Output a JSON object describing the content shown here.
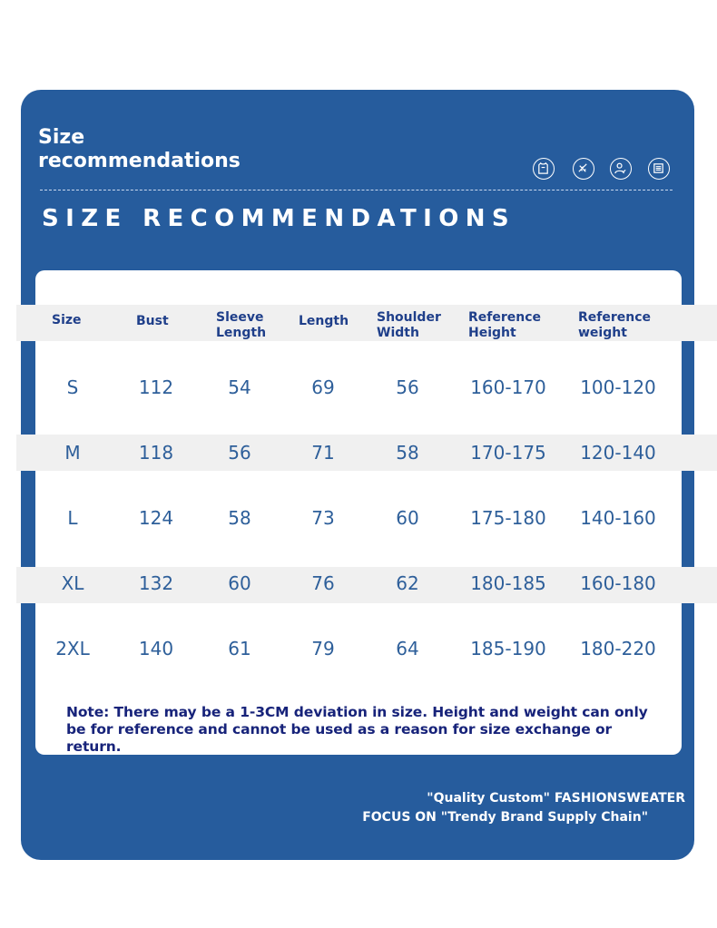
{
  "header": {
    "title_line1": "Size",
    "title_line2": "recommendations",
    "big_title": "SIZE RECOMMENDATIONS",
    "icons": [
      "shirt-icon",
      "tape-measure-icon",
      "person-check-icon",
      "size-list-icon"
    ]
  },
  "table": {
    "headers": [
      {
        "l1": "Size",
        "l2": ""
      },
      {
        "l1": "Bust",
        "l2": ""
      },
      {
        "l1": "Sleeve",
        "l2": "Length"
      },
      {
        "l1": "Length",
        "l2": ""
      },
      {
        "l1": "Shoulder",
        "l2": "Width"
      },
      {
        "l1": "Reference",
        "l2": "Height"
      },
      {
        "l1": "Reference",
        "l2": "weight"
      }
    ],
    "rows": [
      {
        "size": "S",
        "bust": "112",
        "sleeve": "54",
        "length": "69",
        "shoulder": "56",
        "height": "160-170",
        "weight": "100-120"
      },
      {
        "size": "M",
        "bust": "118",
        "sleeve": "56",
        "length": "71",
        "shoulder": "58",
        "height": "170-175",
        "weight": "120-140"
      },
      {
        "size": "L",
        "bust": "124",
        "sleeve": "58",
        "length": "73",
        "shoulder": "60",
        "height": "175-180",
        "weight": "140-160"
      },
      {
        "size": "XL",
        "bust": "132",
        "sleeve": "60",
        "length": "76",
        "shoulder": "62",
        "height": "180-185",
        "weight": "160-180"
      },
      {
        "size": "2XL",
        "bust": "140",
        "sleeve": "61",
        "length": "79",
        "shoulder": "64",
        "height": "185-190",
        "weight": "180-220"
      }
    ]
  },
  "note": "Note: There may be a 1-3CM deviation in size. Height and weight can only be for reference and cannot be used as a reason for size exchange or return.",
  "footer": {
    "line1": "\"Quality Custom\" FASHIONSWEATER",
    "line2": "FOCUS ON \"Trendy Brand Supply Chain\""
  },
  "colors": {
    "card_blue": "#265c9d",
    "header_text": "#1f3f8a",
    "value_text": "#2e5f9a",
    "note_text": "#17237a",
    "stripe": "#f0f0f0"
  }
}
